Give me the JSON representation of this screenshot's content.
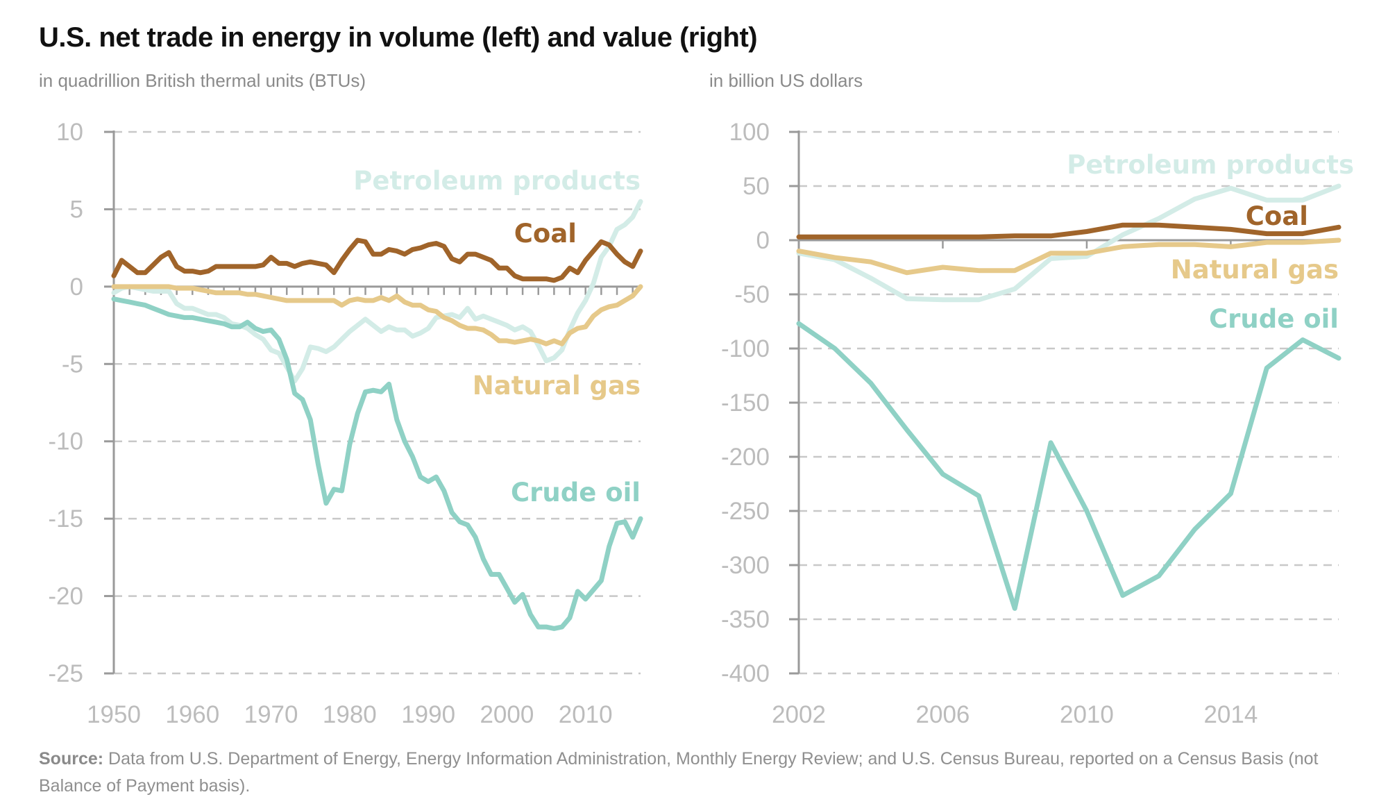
{
  "title": "U.S. net trade in energy in volume (left) and value (right)",
  "source_label": "Source:",
  "source_text": " Data from U.S. Department of Energy, Energy Information Administration, Monthly Energy Review; and U.S. Census Bureau, reported on a Census Basis (not Balance of Payment basis).",
  "colors": {
    "Coal": "#a0642a",
    "Natural gas": "#e6c98a",
    "Crude oil": "#8fd1c5",
    "Petroleum products": "#d3ece7",
    "grid": "#c8c8c8",
    "axis": "#9a9a9a",
    "tick_text": "#bcbcbc"
  },
  "chart_data": [
    {
      "type": "line",
      "subtitle": "in quadrillion British thermal units (BTUs)",
      "ylim": [
        -25,
        10
      ],
      "yticks": [
        10,
        5,
        0,
        -5,
        -10,
        -15,
        -20,
        -25
      ],
      "xlim": [
        1950,
        2017
      ],
      "xticks": [
        1950,
        1960,
        1970,
        1980,
        1990,
        2000,
        2010
      ],
      "grid": "horizontal dashed",
      "x_start": 1950,
      "series": [
        {
          "name": "Petroleum products",
          "values": [
            -0.4,
            -0.1,
            0,
            -0.1,
            -0.2,
            -0.3,
            -0.3,
            -0.3,
            -1.1,
            -1.4,
            -1.4,
            -1.6,
            -1.8,
            -1.8,
            -2.0,
            -2.4,
            -2.5,
            -2.7,
            -3.1,
            -3.4,
            -4.1,
            -4.3,
            -5.2,
            -6.1,
            -5.3,
            -3.9,
            -4.0,
            -4.2,
            -3.9,
            -3.4,
            -2.9,
            -2.5,
            -2.1,
            -2.5,
            -2.9,
            -2.6,
            -2.8,
            -2.8,
            -3.2,
            -3.0,
            -2.7,
            -2.0,
            -1.9,
            -1.8,
            -2.0,
            -1.4,
            -2.1,
            -1.9,
            -2.1,
            -2.3,
            -2.5,
            -2.8,
            -2.6,
            -2.9,
            -3.8,
            -4.8,
            -4.6,
            -4.1,
            -2.8,
            -1.7,
            -0.9,
            0.2,
            1.9,
            2.6,
            3.7,
            4.0,
            4.5,
            5.5
          ]
        },
        {
          "name": "Coal",
          "values": [
            0.7,
            1.7,
            1.3,
            0.9,
            0.9,
            1.4,
            1.9,
            2.2,
            1.3,
            1.0,
            1.0,
            0.9,
            1.0,
            1.3,
            1.3,
            1.3,
            1.3,
            1.3,
            1.3,
            1.4,
            1.9,
            1.5,
            1.5,
            1.3,
            1.5,
            1.6,
            1.5,
            1.4,
            0.9,
            1.7,
            2.4,
            3.0,
            2.9,
            2.1,
            2.1,
            2.4,
            2.3,
            2.1,
            2.4,
            2.5,
            2.7,
            2.8,
            2.6,
            1.8,
            1.6,
            2.1,
            2.1,
            1.9,
            1.7,
            1.2,
            1.2,
            0.7,
            0.5,
            0.5,
            0.5,
            0.5,
            0.4,
            0.6,
            1.2,
            0.9,
            1.7,
            2.3,
            2.9,
            2.7,
            2.1,
            1.6,
            1.3,
            2.3
          ]
        },
        {
          "name": "Natural gas",
          "values": [
            0,
            0,
            0,
            0,
            0,
            0,
            0,
            0,
            -0.1,
            -0.1,
            -0.1,
            -0.2,
            -0.3,
            -0.4,
            -0.4,
            -0.4,
            -0.4,
            -0.5,
            -0.5,
            -0.6,
            -0.7,
            -0.8,
            -0.9,
            -0.9,
            -0.9,
            -0.9,
            -0.9,
            -0.9,
            -0.9,
            -1.2,
            -0.9,
            -0.8,
            -0.9,
            -0.9,
            -0.7,
            -0.9,
            -0.6,
            -1.0,
            -1.2,
            -1.2,
            -1.5,
            -1.6,
            -2.0,
            -2.2,
            -2.5,
            -2.7,
            -2.7,
            -2.8,
            -3.1,
            -3.5,
            -3.5,
            -3.6,
            -3.5,
            -3.4,
            -3.5,
            -3.7,
            -3.5,
            -3.7,
            -3.0,
            -2.7,
            -2.6,
            -1.9,
            -1.5,
            -1.3,
            -1.2,
            -0.9,
            -0.6,
            0.0
          ]
        },
        {
          "name": "Crude oil",
          "values": [
            -0.8,
            -0.9,
            -1.0,
            -1.1,
            -1.2,
            -1.4,
            -1.6,
            -1.8,
            -1.9,
            -2.0,
            -2.0,
            -2.1,
            -2.2,
            -2.3,
            -2.4,
            -2.6,
            -2.6,
            -2.3,
            -2.7,
            -2.9,
            -2.8,
            -3.4,
            -4.7,
            -6.9,
            -7.3,
            -8.6,
            -11.5,
            -14.0,
            -13.1,
            -13.2,
            -10.2,
            -8.2,
            -6.8,
            -6.7,
            -6.8,
            -6.3,
            -8.6,
            -10.0,
            -11.0,
            -12.3,
            -12.6,
            -12.3,
            -13.2,
            -14.6,
            -15.2,
            -15.4,
            -16.2,
            -17.6,
            -18.6,
            -18.6,
            -19.5,
            -20.4,
            -19.9,
            -21.2,
            -22.0,
            -22.0,
            -22.1,
            -22.0,
            -21.4,
            -19.7,
            -20.2,
            -19.6,
            -19.0,
            -16.8,
            -15.3,
            -15.2,
            -16.2,
            -15.0
          ]
        }
      ]
    },
    {
      "type": "line",
      "subtitle": "in billion US dollars",
      "ylim": [
        -400,
        100
      ],
      "yticks": [
        100,
        50,
        0,
        -50,
        -100,
        -150,
        -200,
        -250,
        -300,
        -350,
        -400
      ],
      "xlim": [
        2002,
        2017
      ],
      "xticks": [
        2002,
        2006,
        2010,
        2014
      ],
      "grid": "horizontal dashed",
      "x_start": 2002,
      "series": [
        {
          "name": "Petroleum products",
          "values": [
            -12,
            -18,
            -35,
            -54,
            -55,
            -55,
            -45,
            -17,
            -15,
            5,
            20,
            38,
            48,
            37,
            37,
            50
          ]
        },
        {
          "name": "Coal",
          "values": [
            3,
            3,
            3,
            3,
            3,
            3,
            4,
            4,
            8,
            14,
            14,
            12,
            10,
            6,
            6,
            12
          ]
        },
        {
          "name": "Natural gas",
          "values": [
            -10,
            -16,
            -20,
            -30,
            -25,
            -28,
            -28,
            -12,
            -12,
            -6,
            -4,
            -4,
            -6,
            -2,
            -2,
            0
          ]
        },
        {
          "name": "Crude oil",
          "values": [
            -77,
            -100,
            -132,
            -175,
            -216,
            -236,
            -340,
            -187,
            -250,
            -328,
            -310,
            -267,
            -234,
            -118,
            -92,
            -109
          ]
        }
      ]
    }
  ]
}
